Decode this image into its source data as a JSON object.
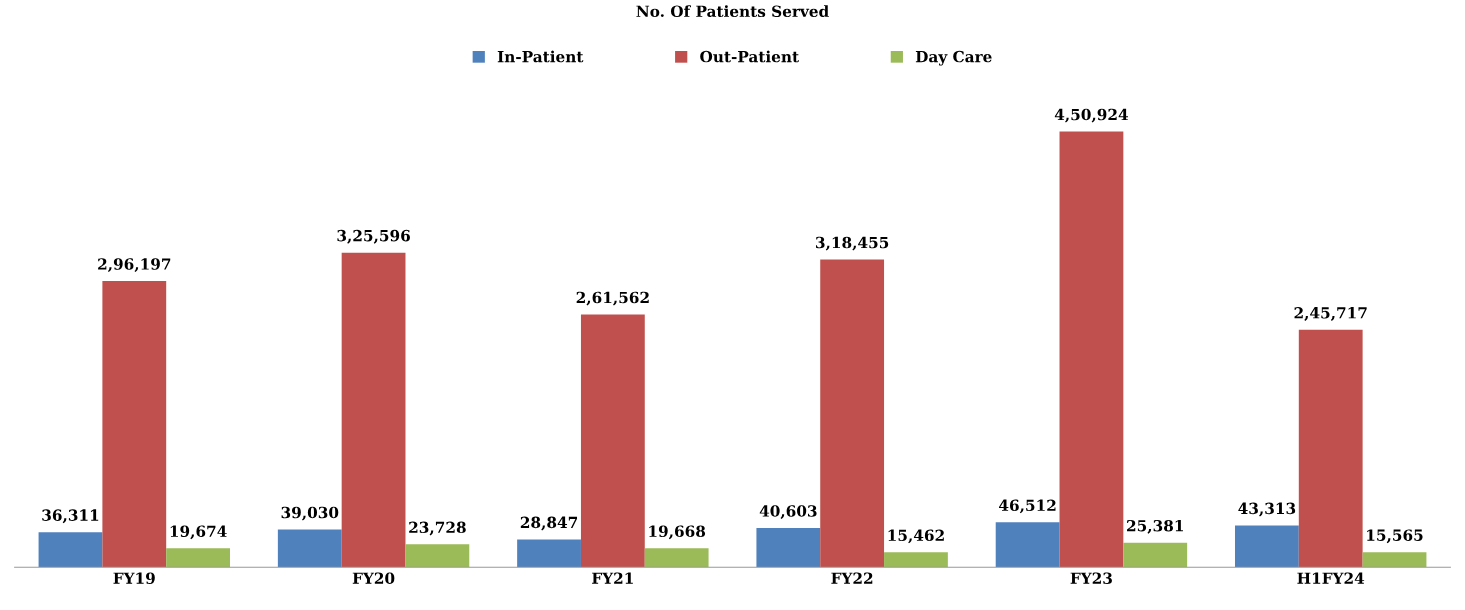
{
  "chart_data": {
    "type": "bar",
    "title": "No. Of Patients Served",
    "categories": [
      "FY19",
      "FY20",
      "FY21",
      "FY22",
      "FY23",
      "H1FY24"
    ],
    "series": [
      {
        "name": "In-Patient",
        "color": "#4f81bd",
        "values": [
          36311,
          39030,
          28847,
          40603,
          46512,
          43313
        ],
        "value_labels": [
          "36,311",
          "39,030",
          "28,847",
          "40,603",
          "46,512",
          "43,313"
        ]
      },
      {
        "name": "Out-Patient",
        "color": "#c0504d",
        "values": [
          296197,
          325596,
          261562,
          318455,
          450924,
          245717
        ],
        "value_labels": [
          "2,96,197",
          "3,25,596",
          "2,61,562",
          "3,18,455",
          "4,50,924",
          "2,45,717"
        ]
      },
      {
        "name": "Day Care",
        "color": "#9bbb59",
        "values": [
          19674,
          23728,
          19668,
          15462,
          25381,
          15565
        ],
        "value_labels": [
          "19,674",
          "23,728",
          "19,668",
          "15,462",
          "25,381",
          "15,565"
        ]
      }
    ],
    "legend": "top",
    "grid": false,
    "tick_labels": "x"
  }
}
